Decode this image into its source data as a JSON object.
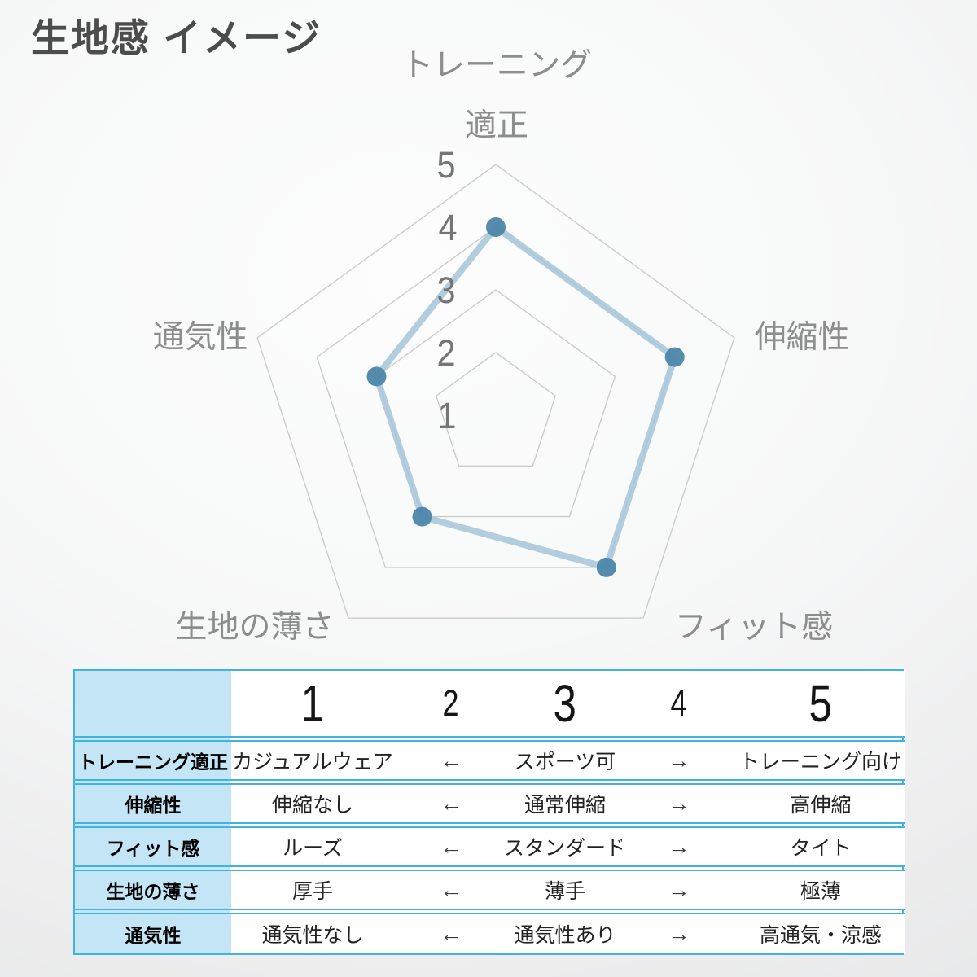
{
  "title": "生地感 イメージ",
  "chart_data": {
    "type": "radar",
    "title": "生地感 イメージ",
    "axes": [
      "トレーニング適正",
      "伸縮性",
      "フィット感",
      "生地の薄さ",
      "通気性"
    ],
    "values": [
      4,
      4,
      4,
      3,
      3
    ],
    "scale_min": 1,
    "scale_max": 5,
    "tick_labels": [
      "5",
      "4",
      "3",
      "2",
      "1"
    ],
    "grid_rings_at": [
      2,
      3,
      4,
      5
    ],
    "grid_on": true,
    "legend": "none",
    "axis_display": {
      "top_line1": "トレーニング",
      "top_line2": "適正",
      "right": "伸縮性",
      "bottom_right": "フィット感",
      "bottom_left": "生地の薄さ",
      "left": "通気性"
    },
    "colors": {
      "line": "#a6c6da",
      "point": "#4c86a8",
      "grid": "#cccccc",
      "axis_label": "#8d8d8d",
      "tick_label": "#757575"
    }
  },
  "table": {
    "header": [
      "",
      "1",
      "2",
      "3",
      "4",
      "5"
    ],
    "rows": [
      {
        "label": "トレーニング適正",
        "cells": [
          "カジュアルウェア",
          "←",
          "スポーツ可",
          "→",
          "トレーニング向け"
        ]
      },
      {
        "label": "伸縮性",
        "cells": [
          "伸縮なし",
          "←",
          "通常伸縮",
          "→",
          "高伸縮"
        ]
      },
      {
        "label": "フィット感",
        "cells": [
          "ルーズ",
          "←",
          "スタンダード",
          "→",
          "タイト"
        ]
      },
      {
        "label": "生地の薄さ",
        "cells": [
          "厚手",
          "←",
          "薄手",
          "→",
          "極薄"
        ]
      },
      {
        "label": "通気性",
        "cells": [
          "通気性なし",
          "←",
          "通気性あり",
          "→",
          "高通気・涼感"
        ]
      }
    ],
    "colors": {
      "border": "#41b3e0",
      "label_bg": "#c3e5f5"
    }
  }
}
